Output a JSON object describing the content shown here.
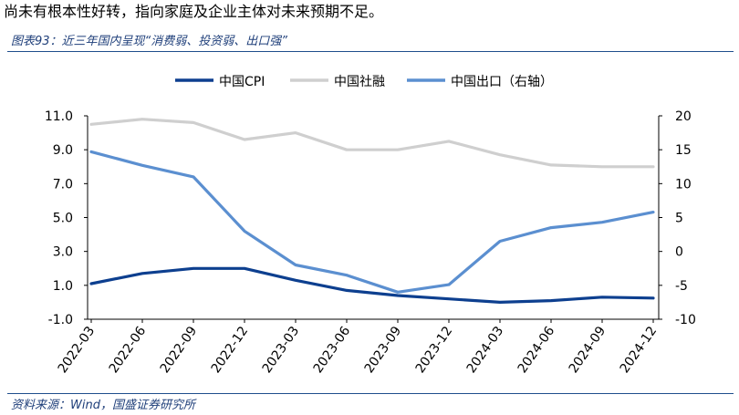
{
  "intro_text": "尚未有根本性好转，指向家庭及企业主体对未来预期不足。",
  "caption": "图表93：近三年国内呈现“消费弱、投资弱、出口强”",
  "source": "资料来源：Wind，国盛证券研究所",
  "chart_data": {
    "type": "line",
    "x": [
      "2022-03",
      "2022-06",
      "2022-09",
      "2022-12",
      "2023-03",
      "2023-06",
      "2023-09",
      "2023-12",
      "2024-03",
      "2024-06",
      "2024-09",
      "2024-12"
    ],
    "series": [
      {
        "name": "中国CPI",
        "axis": "left",
        "color": "#0d3f8f",
        "values": [
          1.1,
          1.7,
          2.0,
          2.0,
          1.3,
          0.7,
          0.4,
          0.2,
          0.0,
          0.1,
          0.3,
          0.25
        ]
      },
      {
        "name": "中国社融",
        "axis": "left",
        "color": "#cfcfcf",
        "values": [
          10.5,
          10.8,
          10.6,
          9.6,
          10.0,
          9.0,
          9.0,
          9.5,
          8.7,
          8.1,
          8.0,
          8.0
        ]
      },
      {
        "name": "中国出口（右轴）",
        "axis": "right",
        "color": "#5b8fd0",
        "values": [
          14.7,
          12.7,
          11.0,
          3.0,
          -2.0,
          -3.5,
          -6.0,
          -4.9,
          1.5,
          3.5,
          4.3,
          5.8
        ]
      }
    ],
    "y_left": {
      "min": -1.0,
      "max": 11.0,
      "ticks": [
        "11.0",
        "9.0",
        "7.0",
        "5.0",
        "3.0",
        "1.0",
        "-1.0"
      ]
    },
    "y_right": {
      "min": -10,
      "max": 20,
      "ticks": [
        "20",
        "15",
        "10",
        "5",
        "0",
        "-5",
        "-10"
      ]
    },
    "legend_position": "top-center",
    "grid": false
  }
}
